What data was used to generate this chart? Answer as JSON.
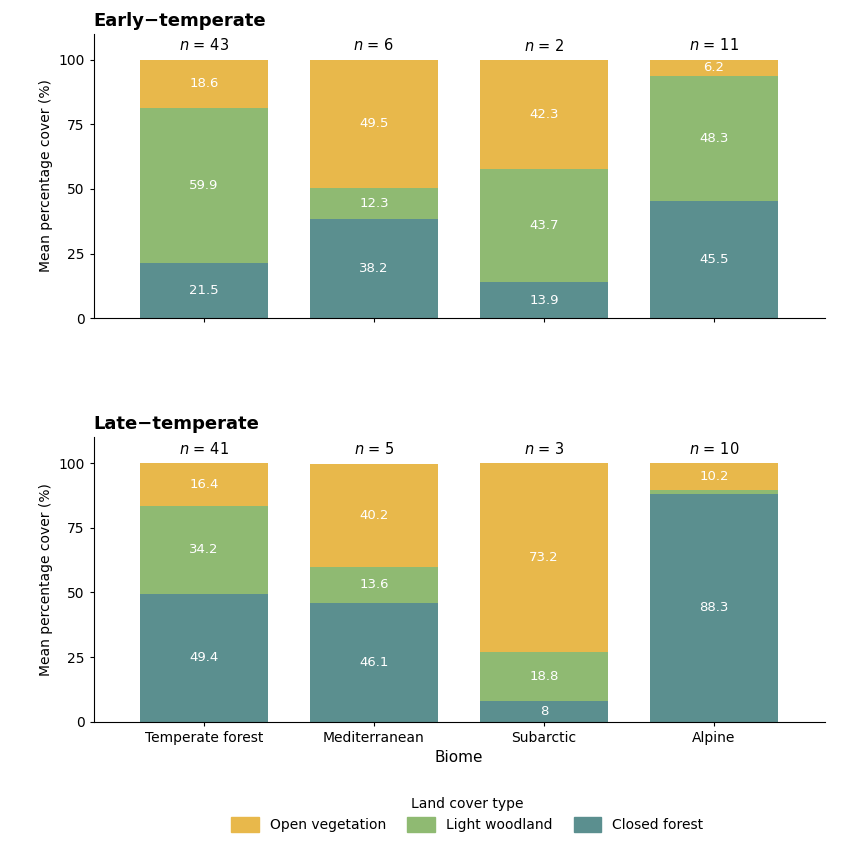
{
  "early_temperate": {
    "title": "Early−temperate",
    "n_labels": [
      "43",
      "6",
      "2",
      "11"
    ],
    "categories": [
      "Temperate forest",
      "Mediterranean",
      "Subarctic",
      "Alpine"
    ],
    "closed_forest": [
      21.5,
      38.2,
      13.9,
      45.5
    ],
    "light_woodland": [
      59.9,
      12.3,
      43.7,
      48.3
    ],
    "open_vegetation": [
      18.6,
      49.5,
      42.3,
      6.2
    ]
  },
  "late_temperate": {
    "title": "Late−temperate",
    "n_labels": [
      "41",
      "5",
      "3",
      "10"
    ],
    "categories": [
      "Temperate forest",
      "Mediterranean",
      "Subarctic",
      "Alpine"
    ],
    "closed_forest": [
      49.4,
      46.1,
      8.0,
      88.3
    ],
    "light_woodland": [
      34.2,
      13.6,
      18.8,
      1.5
    ],
    "open_vegetation": [
      16.4,
      40.2,
      73.2,
      10.2
    ]
  },
  "colors": {
    "closed_forest": "#5b8f8f",
    "light_woodland": "#8fba72",
    "open_vegetation": "#e8b84b"
  },
  "ylabel": "Mean percentage cover (%)",
  "xlabel": "Biome",
  "legend_title": "Land cover type",
  "ylim": [
    0,
    110
  ],
  "bar_width": 0.75,
  "text_color": "white",
  "text_fontsize": 9.5,
  "title_fontsize": 13,
  "n_fontsize": 10.5
}
